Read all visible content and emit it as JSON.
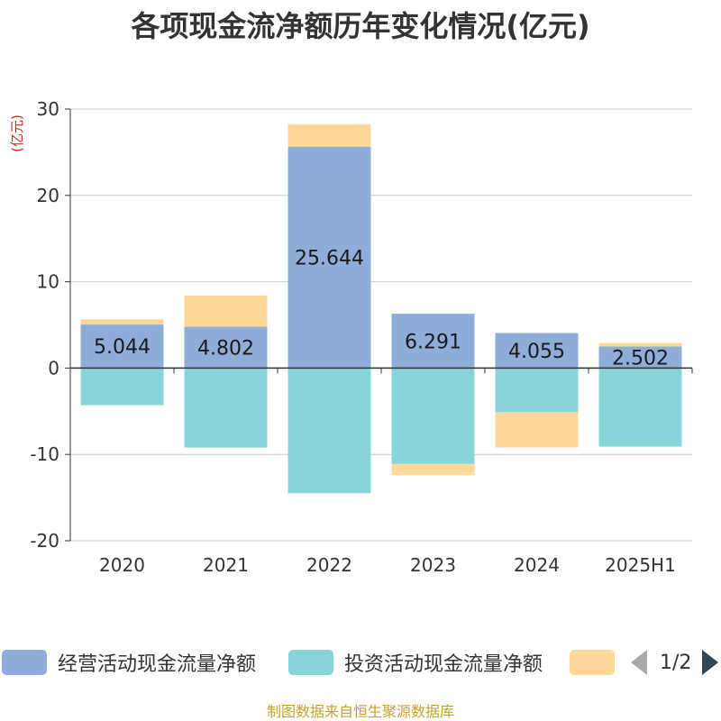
{
  "chart_data": {
    "type": "bar",
    "stacked": true,
    "title": "各项现金流净额历年变化情况(亿元)",
    "ylabel": "(亿元)",
    "categories": [
      "2020",
      "2021",
      "2022",
      "2023",
      "2024",
      "2025H1"
    ],
    "ylim": [
      -20,
      30
    ],
    "yticks": [
      -20,
      -10,
      0,
      10,
      20,
      30
    ],
    "grid": true,
    "series": [
      {
        "name": "经营活动现金流量净额",
        "color": "#8eadd9",
        "values": [
          5.044,
          4.802,
          25.644,
          6.291,
          4.055,
          2.502
        ],
        "labels": [
          "5.044",
          "4.802",
          "25.644",
          "6.291",
          "4.055",
          "2.502"
        ]
      },
      {
        "name": "投资活动现金流量净额",
        "color": "#87d5d8",
        "values": [
          -4.3,
          -9.2,
          -14.5,
          -11.1,
          -5.1,
          -9.1
        ]
      },
      {
        "name": "",
        "color": "#fdd899",
        "values": [
          0.6,
          3.6,
          2.6,
          -1.3,
          -4.1,
          0.4
        ]
      }
    ],
    "legend": {
      "position": "bottom",
      "page": "1/2"
    }
  },
  "source": "制图数据来自恒生聚源数据库"
}
